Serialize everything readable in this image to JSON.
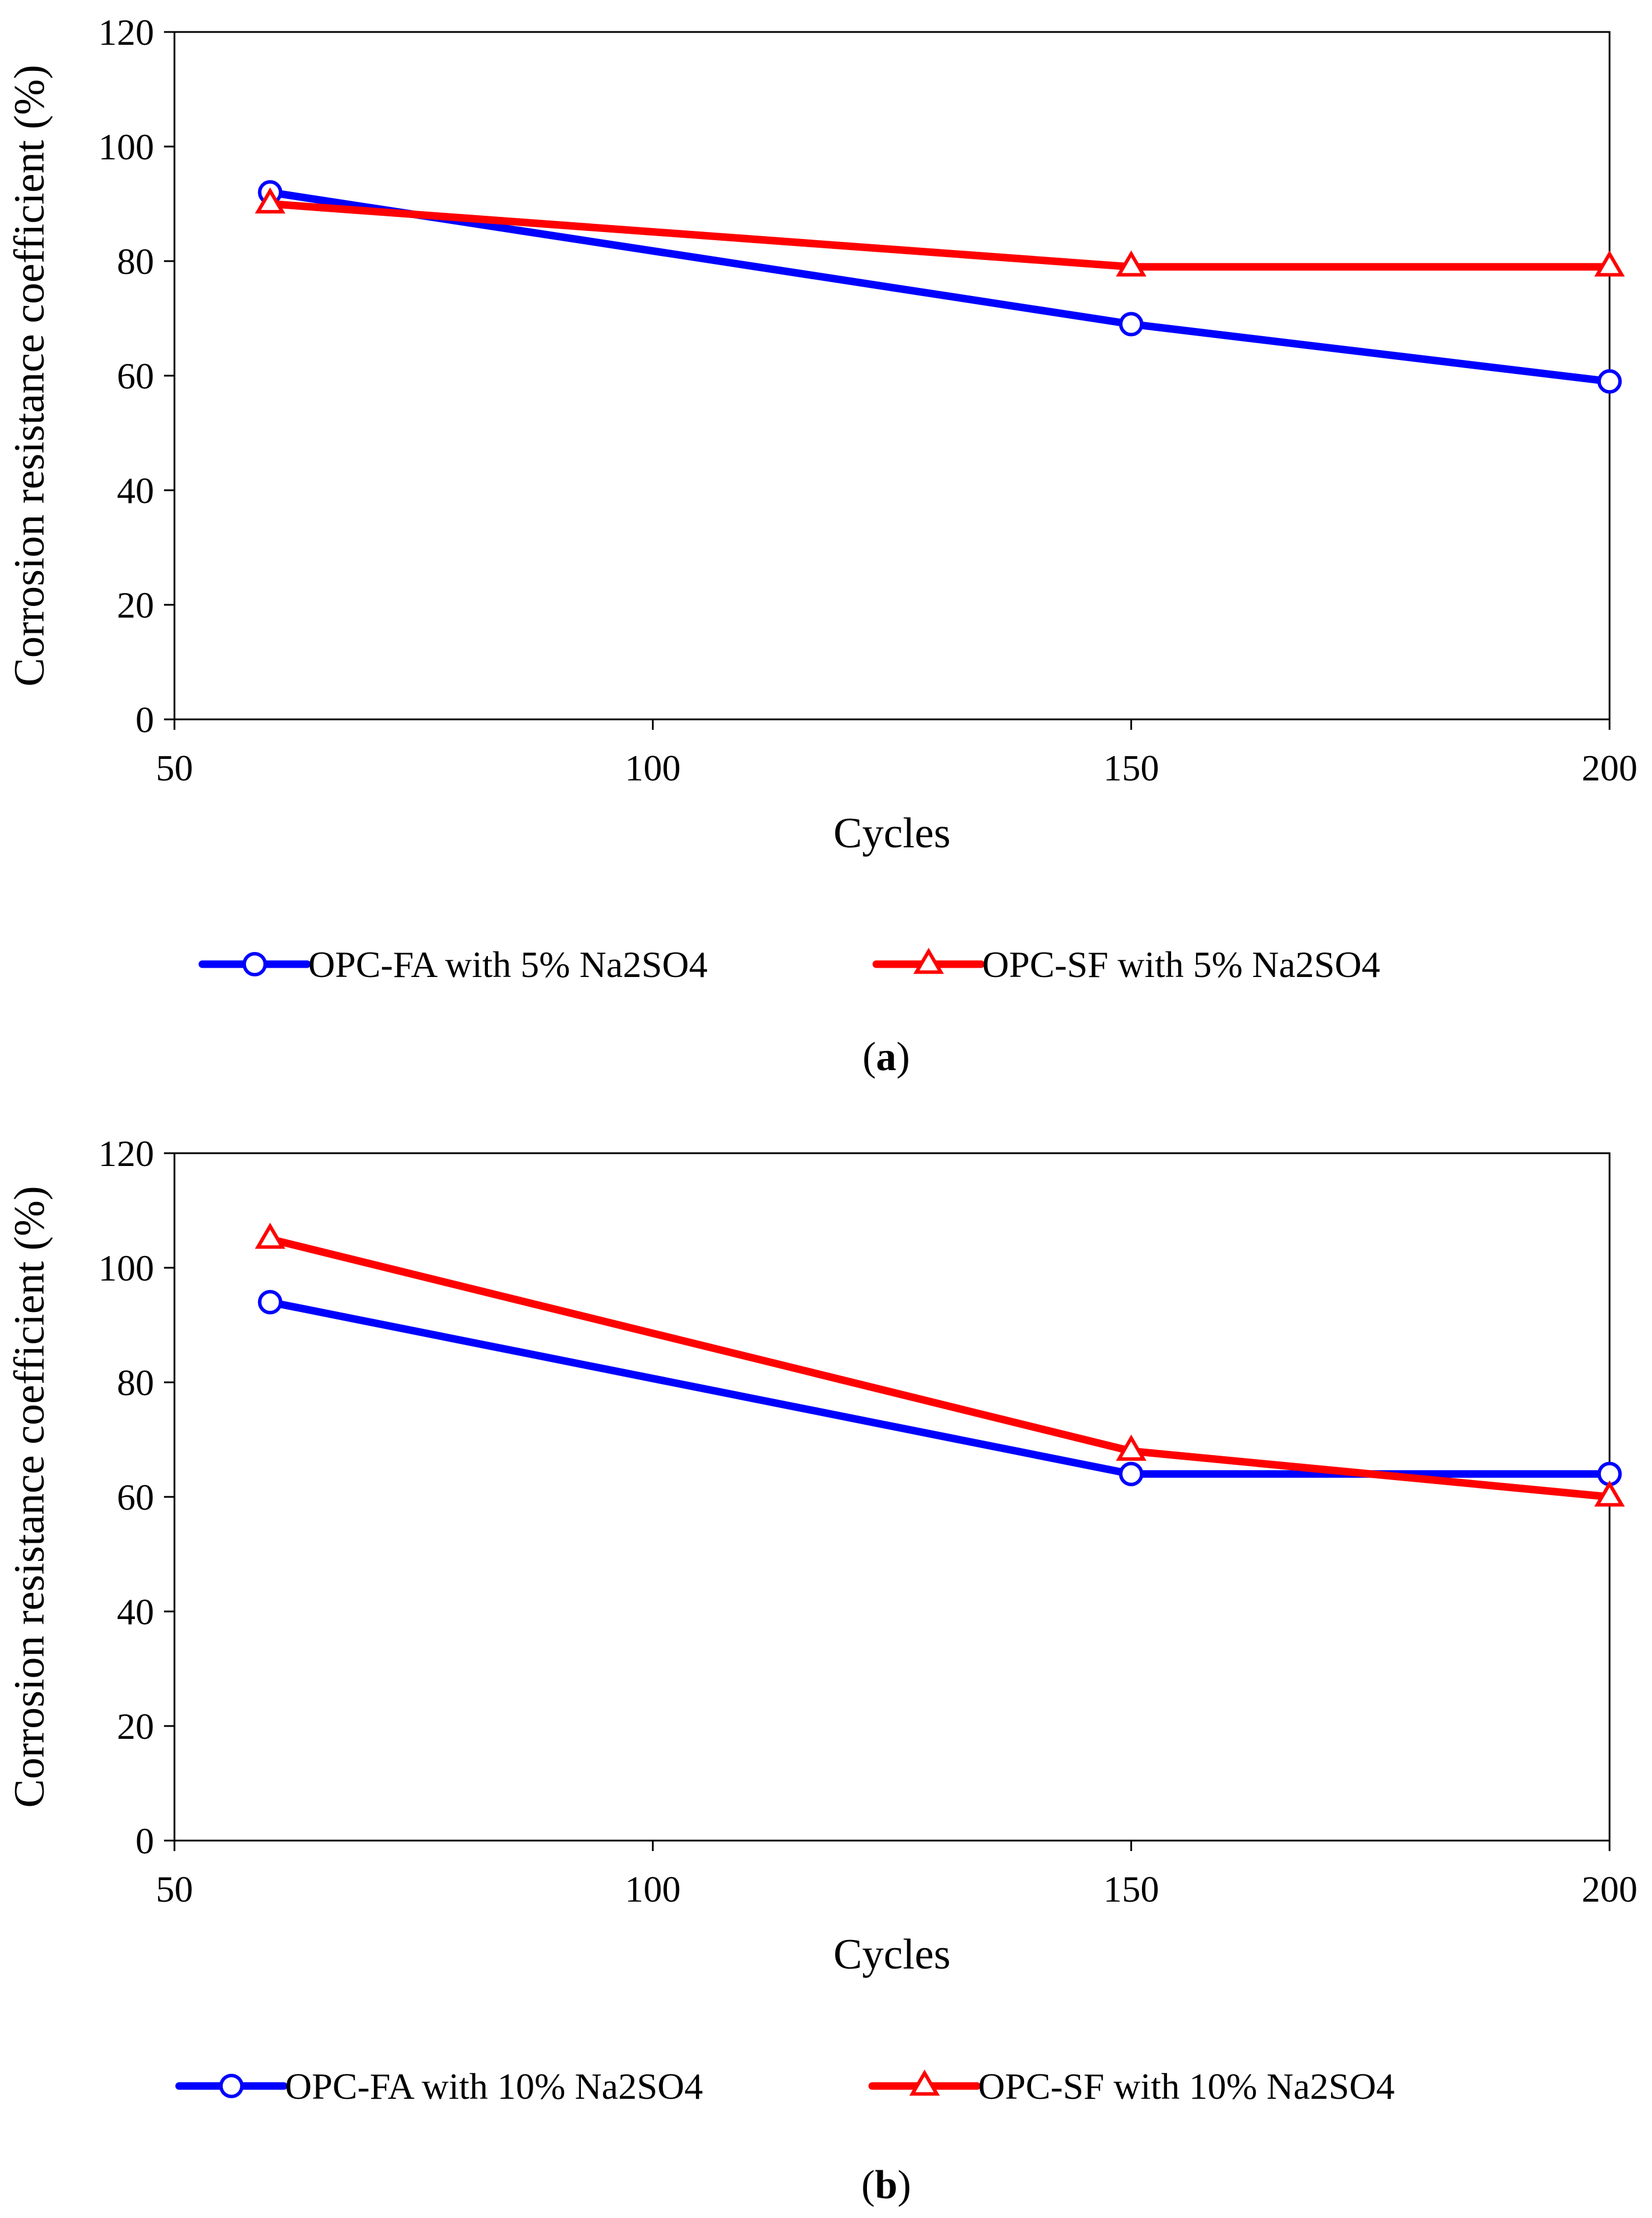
{
  "chart_data": [
    {
      "type": "line",
      "panel_label": "a",
      "xlabel": "Cycles",
      "ylabel": "Corrosion resistance coefficient (%)",
      "xlim": [
        50,
        200
      ],
      "ylim": [
        0,
        120
      ],
      "xticks": [
        50,
        100,
        150,
        200
      ],
      "yticks": [
        0,
        20,
        40,
        60,
        80,
        100,
        120
      ],
      "grid": false,
      "legend_position": "bottom",
      "series": [
        {
          "name": "OPC-FA with 5% Na2SO4",
          "color": "#0000ff",
          "marker": "circle",
          "x": [
            60,
            150,
            200
          ],
          "y": [
            92,
            69,
            59
          ]
        },
        {
          "name": "OPC-SF with 5% Na2SO4",
          "color": "#ff0000",
          "marker": "triangle",
          "x": [
            60,
            150,
            200
          ],
          "y": [
            90,
            79,
            79
          ]
        }
      ]
    },
    {
      "type": "line",
      "panel_label": "b",
      "xlabel": "Cycles",
      "ylabel": "Corrosion resistance coefficient (%)",
      "xlim": [
        50,
        200
      ],
      "ylim": [
        0,
        120
      ],
      "xticks": [
        50,
        100,
        150,
        200
      ],
      "yticks": [
        0,
        20,
        40,
        60,
        80,
        100,
        120
      ],
      "grid": false,
      "legend_position": "bottom",
      "series": [
        {
          "name": "OPC-FA with 10% Na2SO4",
          "color": "#0000ff",
          "marker": "circle",
          "x": [
            60,
            150,
            200
          ],
          "y": [
            94,
            64,
            64
          ]
        },
        {
          "name": "OPC-SF with 10% Na2SO4",
          "color": "#ff0000",
          "marker": "triangle",
          "x": [
            60,
            150,
            200
          ],
          "y": [
            105,
            68,
            60
          ]
        }
      ]
    }
  ]
}
